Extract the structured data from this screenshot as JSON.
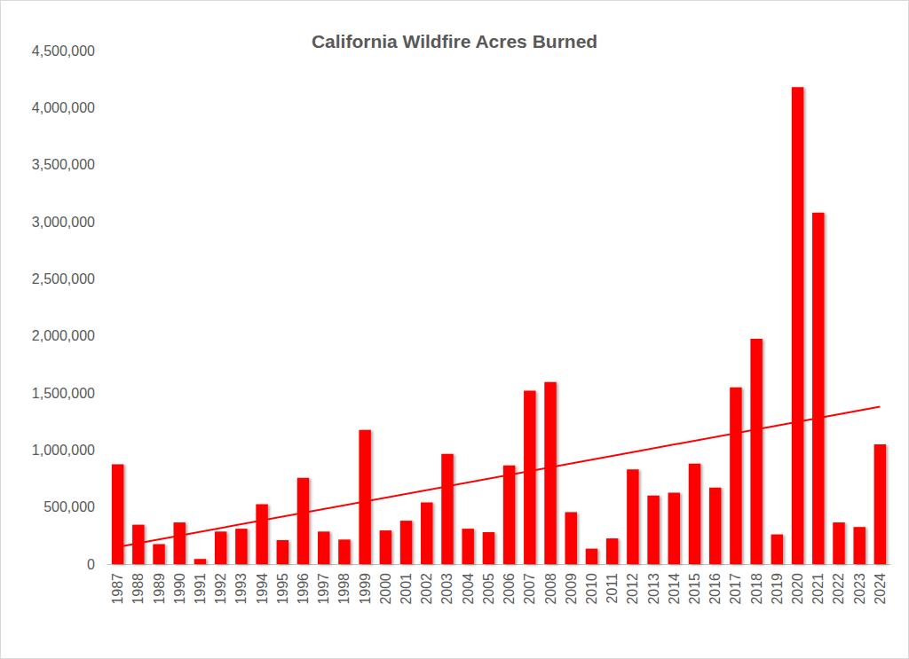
{
  "chart_data": {
    "type": "bar",
    "title": "California Wildfire Acres Burned",
    "categories": [
      "1987",
      "1988",
      "1989",
      "1990",
      "1991",
      "1992",
      "1993",
      "1994",
      "1995",
      "1996",
      "1997",
      "1998",
      "1999",
      "2000",
      "2001",
      "2002",
      "2003",
      "2004",
      "2005",
      "2006",
      "2007",
      "2008",
      "2009",
      "2010",
      "2011",
      "2012",
      "2013",
      "2014",
      "2015",
      "2016",
      "2017",
      "2018",
      "2019",
      "2020",
      "2021",
      "2022",
      "2023",
      "2024"
    ],
    "values": [
      875000,
      345000,
      175000,
      365000,
      45000,
      285000,
      310000,
      525000,
      210000,
      755000,
      285000,
      215000,
      1175000,
      295000,
      380000,
      540000,
      965000,
      310000,
      280000,
      865000,
      1520000,
      1595000,
      455000,
      135000,
      225000,
      830000,
      600000,
      625000,
      880000,
      670000,
      1548000,
      1975000,
      260000,
      4180000,
      3080000,
      365000,
      325000,
      1050000
    ],
    "color": "#ff0000",
    "ylim": [
      0,
      4500000
    ],
    "yticks": [
      0,
      {
        "value": 500000,
        "label": "500,000"
      },
      {
        "value": 1000000,
        "label": "1,000,000"
      },
      {
        "value": 1500000,
        "label": "1,500,000"
      },
      {
        "value": 2000000,
        "label": "2,000,000"
      },
      {
        "value": 2500000,
        "label": "2,500,000"
      },
      {
        "value": 3000000,
        "label": "3,000,000"
      },
      {
        "value": 3500000,
        "label": "3,500,000"
      },
      {
        "value": 4000000,
        "label": "4,000,000"
      },
      {
        "value": 4500000,
        "label": "4,500,000"
      }
    ],
    "trend_line": {
      "start": 150000,
      "end": 1380000
    },
    "grid": false
  }
}
